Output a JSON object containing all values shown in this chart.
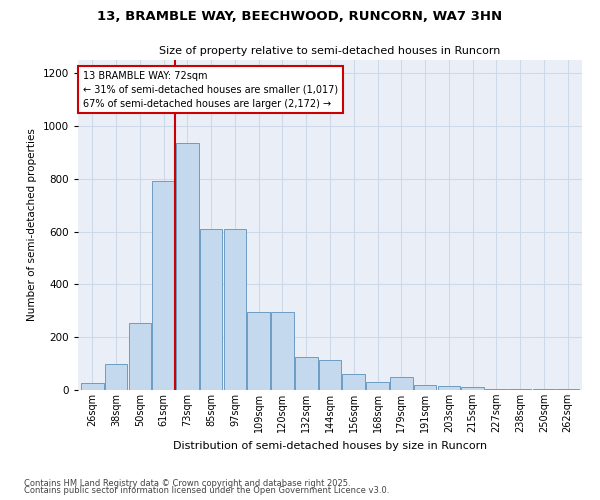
{
  "title1": "13, BRAMBLE WAY, BEECHWOOD, RUNCORN, WA7 3HN",
  "title2": "Size of property relative to semi-detached houses in Runcorn",
  "xlabel": "Distribution of semi-detached houses by size in Runcorn",
  "ylabel": "Number of semi-detached properties",
  "property_label": "13 BRAMBLE WAY: 72sqm",
  "smaller_pct": 31,
  "smaller_count": 1017,
  "larger_pct": 67,
  "larger_count": 2172,
  "property_bin_index": 3,
  "bin_labels": [
    "26sqm",
    "38sqm",
    "50sqm",
    "61sqm",
    "73sqm",
    "85sqm",
    "97sqm",
    "109sqm",
    "120sqm",
    "132sqm",
    "144sqm",
    "156sqm",
    "168sqm",
    "179sqm",
    "191sqm",
    "203sqm",
    "215sqm",
    "227sqm",
    "238sqm",
    "250sqm",
    "262sqm"
  ],
  "bar_heights": [
    25,
    100,
    255,
    790,
    935,
    610,
    610,
    295,
    295,
    125,
    115,
    60,
    30,
    50,
    20,
    15,
    10,
    5,
    3,
    2,
    5
  ],
  "bar_color": "#c5d9ee",
  "bar_edge_color": "#6b9dc2",
  "vline_color": "#cc0000",
  "grid_color": "#cdd8e8",
  "background_color": "#eaeff7",
  "ylim": [
    0,
    1250
  ],
  "yticks": [
    0,
    200,
    400,
    600,
    800,
    1000,
    1200
  ],
  "footer1": "Contains HM Land Registry data © Crown copyright and database right 2025.",
  "footer2": "Contains public sector information licensed under the Open Government Licence v3.0."
}
